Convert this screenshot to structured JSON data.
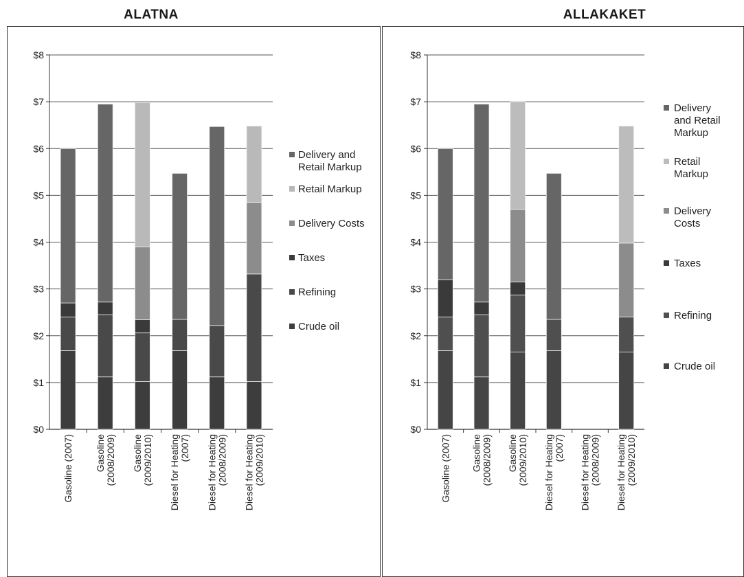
{
  "chart_data": [
    {
      "type": "bar",
      "stacked": true,
      "title": "ALATNA",
      "ylim": [
        0,
        8
      ],
      "yticks": [
        "$0",
        "$1",
        "$2",
        "$3",
        "$4",
        "$5",
        "$6",
        "$7",
        "$8"
      ],
      "grid": true,
      "legend_position": "right",
      "categories": [
        [
          "Gasoline (2007)"
        ],
        [
          "Gasoline",
          "(2008/2009)"
        ],
        [
          "Gasoline",
          "(2009/2010)"
        ],
        [
          "Diesel for Heating",
          "(2007)"
        ],
        [
          "Diesel for Heating",
          "(2008/2009)"
        ],
        [
          "Diesel for Heating",
          "(2009/2010)"
        ]
      ],
      "series": [
        {
          "name": [
            "Crude oil"
          ],
          "color": "#3d3d3d",
          "values": [
            1.68,
            1.12,
            1.02,
            1.68,
            1.12,
            1.02
          ]
        },
        {
          "name": [
            "Refining"
          ],
          "color": "#494949",
          "values": [
            0.72,
            1.33,
            1.04,
            0.67,
            1.1,
            2.3
          ]
        },
        {
          "name": [
            "Taxes"
          ],
          "color": "#3a3a3a",
          "values": [
            0.3,
            0.27,
            0.28,
            0.0,
            0.0,
            0.0
          ]
        },
        {
          "name": [
            "Delivery Costs"
          ],
          "color": "#8c8c8c",
          "values": [
            0.0,
            0.0,
            1.56,
            0.0,
            0.0,
            1.53
          ]
        },
        {
          "name": [
            "Retail Markup"
          ],
          "color": "#b9b9b9",
          "values": [
            0.0,
            0.0,
            3.08,
            0.0,
            0.0,
            1.63
          ]
        },
        {
          "name": [
            "Delivery and",
            "Retail Markup"
          ],
          "color": "#666666",
          "values": [
            3.3,
            4.23,
            0.0,
            3.12,
            4.25,
            0.0
          ]
        }
      ]
    },
    {
      "type": "bar",
      "stacked": true,
      "title": "ALLAKAKET",
      "ylim": [
        0,
        8
      ],
      "yticks": [
        "$0",
        "$1",
        "$2",
        "$3",
        "$4",
        "$5",
        "$6",
        "$7",
        "$8"
      ],
      "grid": true,
      "legend_position": "right",
      "categories": [
        [
          "Gasoline (2007)"
        ],
        [
          "Gasoline",
          "(2008/2009)"
        ],
        [
          "Gasoline",
          "(2009/2010)"
        ],
        [
          "Diesel for Heating",
          "(2007)"
        ],
        [
          "Diesel for Heating",
          "(2008/2009)"
        ],
        [
          "Diesel for Heating",
          "(2009/2010)"
        ]
      ],
      "series": [
        {
          "name": [
            "Crude oil"
          ],
          "color": "#454545",
          "values": [
            1.68,
            1.12,
            1.65,
            1.68,
            0.0,
            1.65
          ]
        },
        {
          "name": [
            "Refining"
          ],
          "color": "#4f4f4f",
          "values": [
            0.72,
            1.33,
            1.22,
            0.67,
            0.0,
            0.75
          ]
        },
        {
          "name": [
            "Taxes"
          ],
          "color": "#3a3a3a",
          "values": [
            0.8,
            0.27,
            0.28,
            0.0,
            0.0,
            0.0
          ]
        },
        {
          "name": [
            "Delivery",
            "Costs"
          ],
          "color": "#8c8c8c",
          "values": [
            0.0,
            0.0,
            1.55,
            0.0,
            0.0,
            1.58
          ]
        },
        {
          "name": [
            "Retail",
            "Markup"
          ],
          "color": "#bcbcbc",
          "values": [
            0.0,
            0.0,
            2.3,
            0.0,
            0.0,
            2.5
          ]
        },
        {
          "name": [
            "Delivery",
            "and Retail",
            "Markup"
          ],
          "color": "#666666",
          "values": [
            2.8,
            4.23,
            0.0,
            3.12,
            0.0,
            0.0
          ]
        }
      ]
    }
  ]
}
